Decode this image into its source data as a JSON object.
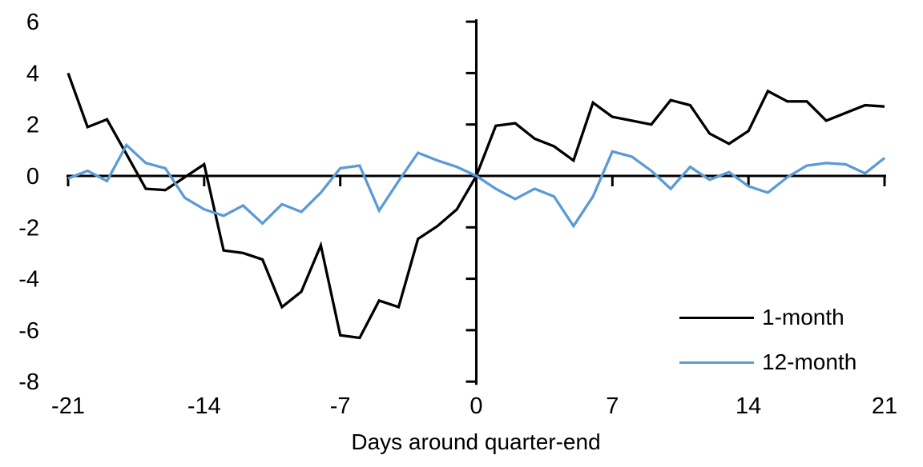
{
  "chart_data": {
    "type": "line",
    "title": "",
    "xlabel": "Days around quarter-end",
    "ylabel": "",
    "grid": false,
    "legend_position": "lower right",
    "xlim": [
      -21,
      21
    ],
    "ylim": [
      -8,
      6
    ],
    "x_ticks": [
      -21,
      -14,
      -7,
      0,
      7,
      14,
      21
    ],
    "x_tick_labels": [
      "-21",
      "-14",
      "-7",
      "0",
      "7",
      "14",
      "21"
    ],
    "y_ticks": [
      6,
      4,
      2,
      0,
      -2,
      -4,
      -6,
      -8
    ],
    "y_tick_labels": [
      "6",
      "4",
      "2",
      "0",
      "-2",
      "-4",
      "-6",
      "-8"
    ],
    "x": [
      -21,
      -20,
      -19,
      -18,
      -17,
      -16,
      -15,
      -14,
      -13,
      -12,
      -11,
      -10,
      -9,
      -8,
      -7,
      -6,
      -5,
      -4,
      -3,
      -2,
      -1,
      0,
      1,
      2,
      3,
      4,
      5,
      6,
      7,
      8,
      9,
      10,
      11,
      12,
      13,
      14,
      15,
      16,
      17,
      18,
      19,
      20,
      21
    ],
    "series": [
      {
        "name": "1-month",
        "color": "#000000",
        "values": [
          4.0,
          1.9,
          2.2,
          0.85,
          -0.5,
          -0.55,
          -0.05,
          0.45,
          -2.9,
          -3.0,
          -3.25,
          -5.1,
          -4.5,
          -2.7,
          -6.2,
          -6.3,
          -4.85,
          -5.1,
          -2.45,
          -1.95,
          -1.3,
          0.0,
          1.95,
          2.05,
          1.45,
          1.15,
          0.6,
          2.85,
          2.3,
          2.15,
          2.0,
          2.95,
          2.75,
          1.65,
          1.25,
          1.75,
          3.3,
          2.9,
          2.9,
          2.15,
          2.45,
          2.75,
          2.7
        ]
      },
      {
        "name": "12-month",
        "color": "#5B9BD5",
        "values": [
          -0.1,
          0.2,
          -0.2,
          1.2,
          0.5,
          0.3,
          -0.85,
          -1.3,
          -1.55,
          -1.15,
          -1.85,
          -1.1,
          -1.4,
          -0.65,
          0.3,
          0.4,
          -1.35,
          -0.2,
          0.9,
          0.6,
          0.35,
          0.0,
          -0.5,
          -0.9,
          -0.5,
          -0.8,
          -1.95,
          -0.8,
          0.95,
          0.75,
          0.2,
          -0.5,
          0.35,
          -0.15,
          0.15,
          -0.4,
          -0.65,
          -0.05,
          0.4,
          0.5,
          0.45,
          0.1,
          0.7
        ]
      }
    ]
  }
}
